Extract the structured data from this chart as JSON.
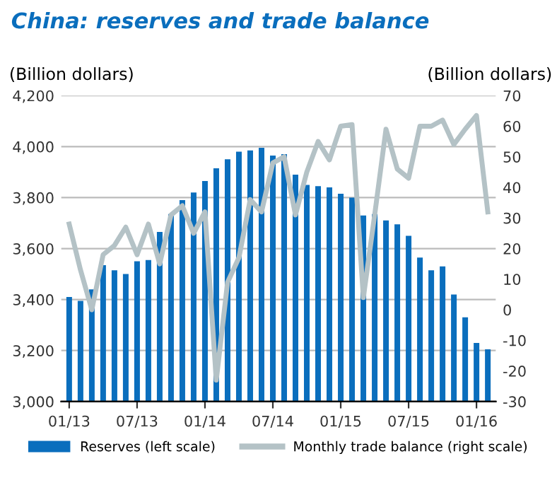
{
  "chart_data": {
    "type": "bar",
    "title": "China: reserves and trade balance",
    "ylabel": "(Billion dollars)",
    "y2label": "(Billion dollars)",
    "categories": [
      "01/13",
      null,
      null,
      null,
      null,
      null,
      "07/13",
      null,
      null,
      null,
      null,
      null,
      "01/14",
      null,
      null,
      null,
      null,
      null,
      "07/14",
      null,
      null,
      null,
      null,
      null,
      "01/15",
      null,
      null,
      null,
      null,
      null,
      "07/15",
      null,
      null,
      null,
      null,
      null,
      "01/16",
      null
    ],
    "series": [
      {
        "name": "Reserves (left scale)",
        "color": "#0a6ebd",
        "values": [
          3410,
          3395,
          3440,
          3535,
          3515,
          3500,
          3550,
          3555,
          3665,
          3735,
          3790,
          3820,
          3865,
          3915,
          3950,
          3980,
          3985,
          3995,
          3965,
          3970,
          3890,
          3850,
          3845,
          3840,
          3815,
          3800,
          3730,
          3735,
          3710,
          3695,
          3650,
          3565,
          3515,
          3530,
          3420,
          3330,
          3230,
          3205
        ]
      },
      {
        "name": "Monthly trade balance (right scale)",
        "type": "line",
        "axis": "y2",
        "color": "#b4c2c6",
        "values": [
          28,
          13,
          0,
          18,
          21,
          27,
          18,
          28,
          15,
          31,
          34,
          25,
          32,
          -23,
          9,
          17,
          36,
          32,
          48,
          50,
          31,
          45,
          55,
          49,
          60,
          60.5,
          4,
          31,
          59,
          46,
          43,
          60,
          60,
          62,
          54,
          59,
          63.5,
          32
        ]
      }
    ],
    "ylim": [
      3000,
      4200
    ],
    "yticks": [
      {
        "value": 3000,
        "label": "3,000"
      },
      {
        "value": 3200,
        "label": "3,200"
      },
      {
        "value": 3400,
        "label": "3,400"
      },
      {
        "value": 3600,
        "label": "3,600"
      },
      {
        "value": 3800,
        "label": "3,800"
      },
      {
        "value": 4000,
        "label": "4,000"
      },
      {
        "value": 4200,
        "label": "4,200"
      }
    ],
    "y2lim": [
      -30,
      70
    ],
    "y2ticks": [
      -30,
      -20,
      -10,
      0,
      10,
      20,
      30,
      40,
      50,
      60,
      70
    ],
    "grid": "y",
    "legend": "bottom",
    "line_style": "solid",
    "marker": "none"
  }
}
